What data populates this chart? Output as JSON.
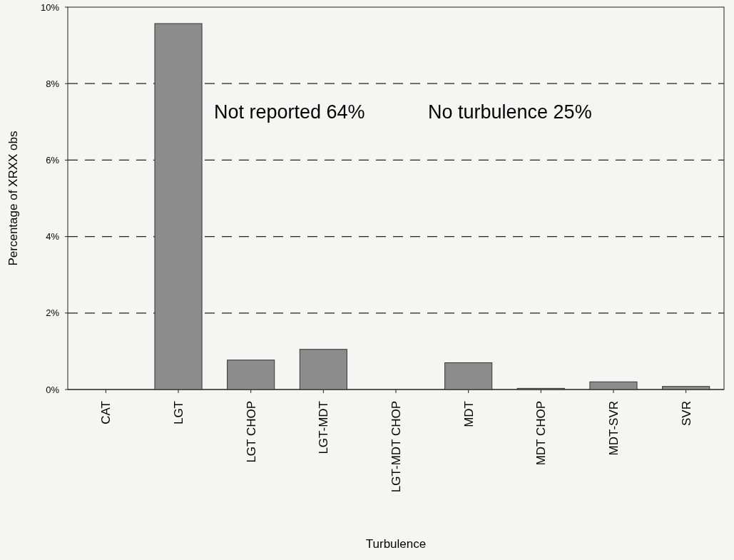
{
  "chart_data": {
    "type": "bar",
    "xlabel": "Turbulence",
    "ylabel": "Percentage of XRXX obs",
    "categories": [
      "CAT",
      "LGT",
      "LGT CHOP",
      "LGT-MDT",
      "LGT-MDT CHOP",
      "MDT",
      "MDT CHOP",
      "MDT-SVR",
      "SVR"
    ],
    "values": [
      0,
      9.57,
      0.77,
      1.05,
      0,
      0.7,
      0.03,
      0.2,
      0.08
    ],
    "color": "#8c8c8c",
    "ylim": [
      0,
      10
    ],
    "yticks": [
      {
        "value": 0,
        "label": "0%"
      },
      {
        "value": 2,
        "label": "2%"
      },
      {
        "value": 4,
        "label": "4%"
      },
      {
        "value": 6,
        "label": "6%"
      },
      {
        "value": 8,
        "label": "8%"
      },
      {
        "value": 10,
        "label": "10%"
      }
    ],
    "grid": "y",
    "annotations": [
      "Not reported 64%",
      "No turbulence 25%"
    ]
  }
}
